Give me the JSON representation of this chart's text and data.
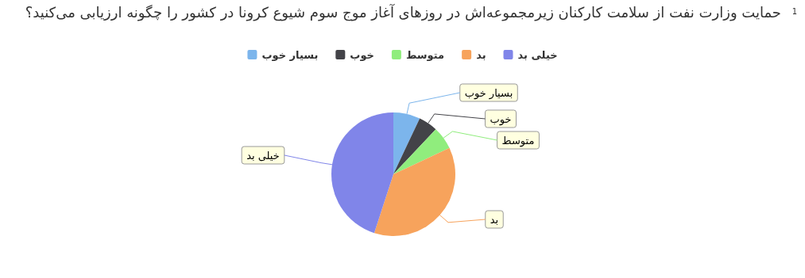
{
  "chart_data": {
    "type": "pie",
    "title": "حمایت وزارت نفت از سلامت کارکنان زیرمجموعه‌اش در روزهای آغاز موج سوم شیوع کرونا در کشور را چگونه ارزیابی می‌کنید؟",
    "annotations": [
      "1"
    ],
    "categories": [
      "بسیار خوب",
      "خوب",
      "متوسط",
      "بد",
      "خیلی بد"
    ],
    "values": [
      7,
      5,
      6,
      37,
      45
    ],
    "colors": [
      "#7cb5ec",
      "#434348",
      "#90ed7d",
      "#f7a35c",
      "#8085e9"
    ],
    "legend": "top",
    "data_labels": false,
    "value_labels": [
      null,
      null,
      null,
      null,
      null
    ]
  }
}
